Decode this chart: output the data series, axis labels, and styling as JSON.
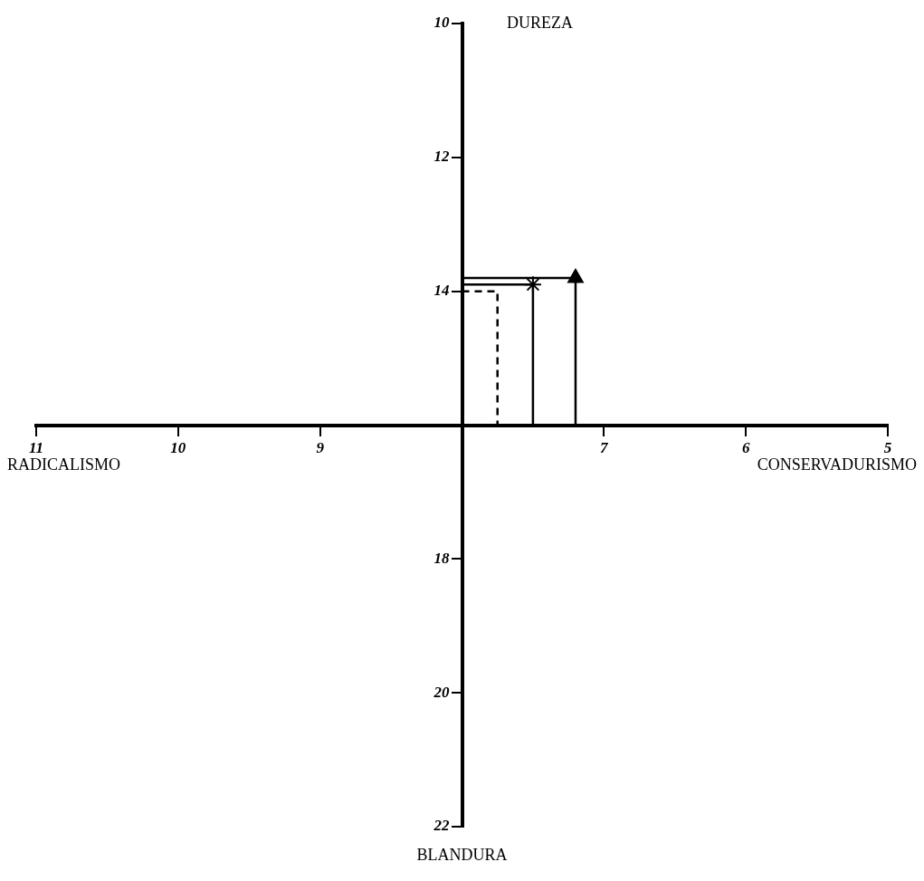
{
  "chart_data": {
    "type": "line",
    "xlim": [
      11,
      5
    ],
    "xticks": [
      11,
      10,
      9,
      7,
      6,
      5
    ],
    "ylim": [
      22,
      10
    ],
    "yticks": [
      10,
      12,
      14,
      18,
      20,
      22
    ],
    "grid": false,
    "series": [
      {
        "type": "line",
        "line_style": "dashed",
        "color": "#000000",
        "x": [
          8,
          7.75,
          7.75
        ],
        "values": [
          14,
          14,
          16
        ]
      },
      {
        "type": "line",
        "line_style": "solid",
        "color": "#000000",
        "x": [
          8,
          7.5,
          7.5
        ],
        "values": [
          13.9,
          13.9,
          16
        ]
      },
      {
        "type": "line",
        "line_style": "solid",
        "color": "#000000",
        "x": [
          8,
          7.2,
          7.2
        ],
        "values": [
          13.8,
          13.8,
          16
        ]
      },
      {
        "type": "scatter",
        "marker": "cross",
        "color": "#000000",
        "x": [
          7.5
        ],
        "values": [
          13.9
        ]
      },
      {
        "type": "scatter",
        "marker": "triangle",
        "color": "#000000",
        "x": [
          7.2
        ],
        "values": [
          13.8
        ]
      }
    ],
    "annotations": [
      "DUREZA",
      "RADICALISMO",
      "CONSERVADURISMO",
      "BLANDURA"
    ]
  }
}
